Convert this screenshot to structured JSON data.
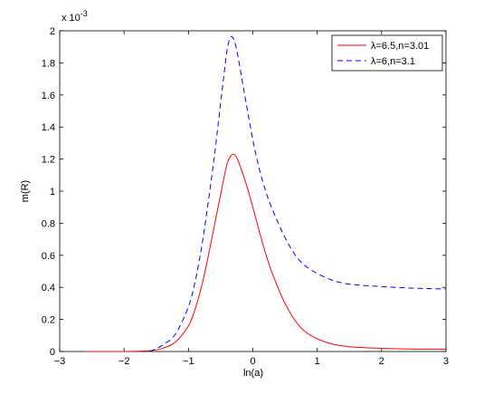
{
  "chart_data": {
    "type": "line",
    "xlabel": "ln(a)",
    "ylabel": "m(R)",
    "y_exponent_label": "x 10",
    "y_exponent_power": "-3",
    "xlim": [
      -3,
      3
    ],
    "ylim": [
      0,
      0.002
    ],
    "x_ticks": [
      -3,
      -2,
      -1,
      0,
      1,
      2,
      3
    ],
    "x_tick_labels": [
      "−3",
      "−2",
      "−1",
      "0",
      "1",
      "2",
      "3"
    ],
    "y_ticks": [
      0,
      0.0002,
      0.0004,
      0.0006,
      0.0008,
      0.001,
      0.0012,
      0.0014,
      0.0016,
      0.0018,
      0.002
    ],
    "y_tick_labels": [
      "0",
      "0.2",
      "0.4",
      "0.6",
      "0.8",
      "1",
      "1.2",
      "1.4",
      "1.6",
      "1.8",
      "2"
    ],
    "grid": false,
    "legend_position": "top-right",
    "series": [
      {
        "name": "λ=6.5,n=3.01",
        "color": "#ff0000",
        "dash": "solid",
        "x": [
          -2.6,
          -2.0,
          -1.6,
          -1.4,
          -1.2,
          -1.0,
          -0.9,
          -0.8,
          -0.7,
          -0.6,
          -0.5,
          -0.45,
          -0.4,
          -0.35,
          -0.3,
          -0.25,
          -0.2,
          -0.1,
          0.0,
          0.1,
          0.2,
          0.3,
          0.5,
          0.7,
          0.9,
          1.2,
          1.5,
          2.0,
          2.5,
          3.0
        ],
        "y": [
          0,
          0,
          5e-06,
          2e-05,
          6e-05,
          0.00016,
          0.00026,
          0.0004,
          0.00058,
          0.00078,
          0.00098,
          0.00108,
          0.00117,
          0.001215,
          0.00123,
          0.00121,
          0.00116,
          0.00104,
          0.0009,
          0.00075,
          0.00061,
          0.00049,
          0.0003,
          0.00017,
          0.0001,
          5e-05,
          3e-05,
          2e-05,
          1.5e-05,
          1.5e-05
        ]
      },
      {
        "name": "λ=6,n=3.1",
        "color": "#0000ff",
        "dash": "dashed",
        "x": [
          -1.6,
          -1.4,
          -1.2,
          -1.0,
          -0.9,
          -0.8,
          -0.7,
          -0.6,
          -0.5,
          -0.45,
          -0.4,
          -0.35,
          -0.3,
          -0.25,
          -0.2,
          -0.1,
          0.0,
          0.1,
          0.2,
          0.3,
          0.5,
          0.7,
          0.9,
          1.2,
          1.5,
          2.0,
          2.5,
          3.0
        ],
        "y": [
          0,
          4e-05,
          0.00011,
          0.00028,
          0.00043,
          0.00064,
          0.00091,
          0.00121,
          0.00155,
          0.00172,
          0.00188,
          0.00196,
          0.00195,
          0.00188,
          0.00177,
          0.00154,
          0.00132,
          0.00114,
          0.001,
          0.00089,
          0.00071,
          0.00058,
          0.00051,
          0.00045,
          0.00042,
          0.000405,
          0.000395,
          0.00039
        ]
      }
    ]
  }
}
